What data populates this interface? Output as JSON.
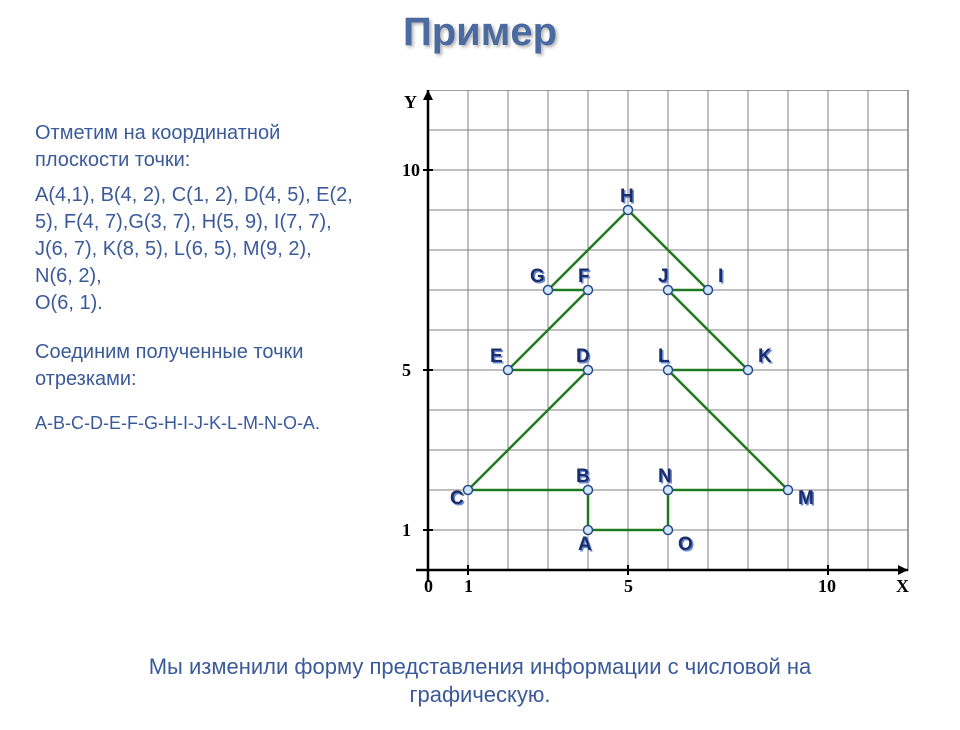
{
  "title": "Пример",
  "text": {
    "intro": "Отметим на координатной плоскости точки:",
    "points_list": "A(4,1), B(4, 2), C(1, 2), D(4, 5), E(2, 5), F(4, 7),G(3, 7), H(5, 9), I(7, 7), J(6, 7), K(8, 5), L(6, 5), M(9, 2), N(6, 2),",
    "last_point": "O(6, 1).",
    "connect_intro": "Соединим полученные точки отрезками:",
    "sequence": "A-B-C-D-E-F-G-H-I-J-K-L-M-N-O-A.",
    "bottom": "Мы изменили форму представления информации с числовой на графическую."
  },
  "chart": {
    "type": "coordinate-grid",
    "background_color": "#ffffff",
    "grid_color": "#808080",
    "grid_line_width": 1,
    "axis_color": "#000000",
    "axis_line_width": 2.5,
    "axis_label_color": "#000000",
    "axis_label_fontsize": 18,
    "axis_label_fontweight": "bold",
    "tick_label_color": "#000000",
    "tick_label_fontsize": 18,
    "tick_label_fontweight": "bold",
    "point_label_color": "#1a2d6b",
    "point_label_fontsize": 19,
    "point_label_fontweight": "bold",
    "point_label_shadow": "#6a88cc",
    "line_color": "#1f7a1f",
    "line_width": 2.5,
    "dot_fill": "#cfe6ff",
    "dot_stroke": "#2a4a8a",
    "dot_radius": 4.5,
    "cell_size": 40,
    "xmin": -1,
    "xmax": 11.5,
    "ymin": -1,
    "ymax": 12,
    "x_axis_label": "X",
    "y_axis_label": "Y",
    "x_ticks": [
      0,
      1,
      5,
      10
    ],
    "y_ticks": [
      1,
      5,
      10
    ],
    "points": {
      "A": [
        4,
        1
      ],
      "B": [
        4,
        2
      ],
      "C": [
        1,
        2
      ],
      "D": [
        4,
        5
      ],
      "E": [
        2,
        5
      ],
      "F": [
        4,
        7
      ],
      "G": [
        3,
        7
      ],
      "H": [
        5,
        9
      ],
      "I": [
        7,
        7
      ],
      "J": [
        6,
        7
      ],
      "K": [
        8,
        5
      ],
      "L": [
        6,
        5
      ],
      "M": [
        9,
        2
      ],
      "N": [
        6,
        2
      ],
      "O": [
        6,
        1
      ]
    },
    "path_order": [
      "A",
      "B",
      "C",
      "D",
      "E",
      "F",
      "G",
      "H",
      "I",
      "J",
      "K",
      "L",
      "M",
      "N",
      "O",
      "A"
    ],
    "label_offsets": {
      "A": [
        -10,
        20
      ],
      "B": [
        -12,
        -8
      ],
      "C": [
        -18,
        14
      ],
      "D": [
        -12,
        -8
      ],
      "E": [
        -18,
        -8
      ],
      "F": [
        -10,
        -8
      ],
      "G": [
        -18,
        -8
      ],
      "H": [
        -8,
        -8
      ],
      "I": [
        10,
        -8
      ],
      "J": [
        -10,
        -8
      ],
      "K": [
        10,
        -8
      ],
      "L": [
        -10,
        -8
      ],
      "M": [
        10,
        14
      ],
      "N": [
        -10,
        -8
      ],
      "O": [
        10,
        20
      ]
    }
  }
}
